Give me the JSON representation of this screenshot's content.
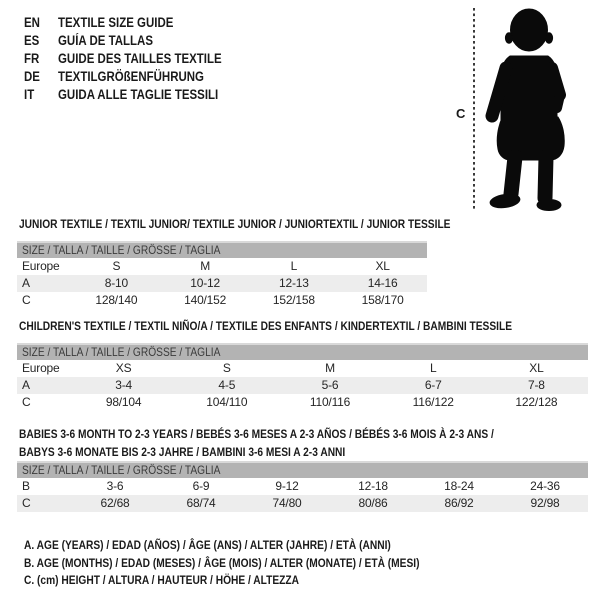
{
  "languages": [
    {
      "code": "EN",
      "title": "TEXTILE SIZE GUIDE"
    },
    {
      "code": "ES",
      "title": "GUÍA DE TALLAS"
    },
    {
      "code": "FR",
      "title": "GUIDE DES TAILLES TEXTILE"
    },
    {
      "code": "DE",
      "title": "TEXTILGRÖßENFÜHRUNG"
    },
    {
      "code": "IT",
      "title": "GUIDA ALLE TAGLIE TESSILI"
    }
  ],
  "figure": {
    "measure_label": "C"
  },
  "tables": [
    {
      "title_lines": [
        "JUNIOR TEXTILE / TEXTIL JUNIOR/ TEXTILE JUNIOR / JUNIORTEXTIL / JUNIOR TESSILE"
      ],
      "header": "SIZE / TALLA / TAILLE / GRÖSSE / TAGLIA",
      "rows": [
        {
          "label": "Europe",
          "values": [
            "S",
            "M",
            "L",
            "XL"
          ],
          "shaded": false
        },
        {
          "label": "A",
          "values": [
            "8-10",
            "10-12",
            "12-13",
            "14-16"
          ],
          "shaded": true
        },
        {
          "label": "C",
          "values": [
            "128/140",
            "140/152",
            "152/158",
            "158/170"
          ],
          "shaded": false
        }
      ]
    },
    {
      "title_lines": [
        "CHILDREN'S TEXTILE / TEXTIL NIÑO/A / TEXTILE DES ENFANTS / KINDERTEXTIL / BAMBINI TESSILE"
      ],
      "header": "SIZE / TALLA / TAILLE / GRÖSSE / TAGLIA",
      "rows": [
        {
          "label": "Europe",
          "values": [
            "XS",
            "S",
            "M",
            "L",
            "XL"
          ],
          "shaded": false
        },
        {
          "label": "A",
          "values": [
            "3-4",
            "4-5",
            "5-6",
            "6-7",
            "7-8"
          ],
          "shaded": true
        },
        {
          "label": "C",
          "values": [
            "98/104",
            "104/110",
            "110/116",
            "116/122",
            "122/128"
          ],
          "shaded": false
        }
      ]
    },
    {
      "title_lines": [
        "BABIES 3-6 MONTH TO 2-3 YEARS / BEBÉS 3-6 MESES A 2-3 AÑOS / BÉBÉS 3-6 MOIS À 2-3 ANS /",
        "BABYS 3-6 MONATE BIS 2-3 JAHRE / BAMBINI 3-6 MESI A 2-3 ANNI"
      ],
      "header": "SIZE / TALLA / TAILLE / GRÖSSE / TAGLIA",
      "rows": [
        {
          "label": "B",
          "values": [
            "3-6",
            "6-9",
            "9-12",
            "12-18",
            "18-24",
            "24-36"
          ],
          "shaded": false
        },
        {
          "label": "C",
          "values": [
            "62/68",
            "68/74",
            "74/80",
            "80/86",
            "86/92",
            "92/98"
          ],
          "shaded": true
        }
      ]
    }
  ],
  "legend": [
    "A. AGE (YEARS) / EDAD (AÑOS) / ÂGE (ANS) / ALTER (JAHRE) / ETÀ (ANNI)",
    "B. AGE (MONTHS) / EDAD (MESES) / ÂGE (MOIS) / ALTER (MONATE) / ETÀ (MESI)",
    "C. (cm) HEIGHT / ALTURA / HAUTEUR / HÖHE / ALTEZZA"
  ],
  "colors": {
    "header_band": "#b3b3b3",
    "header_band_top_line": "#d9d9d9",
    "shaded_row": "#ededed",
    "text": "#1a1a1a",
    "silhouette": "#0a0a0a"
  }
}
